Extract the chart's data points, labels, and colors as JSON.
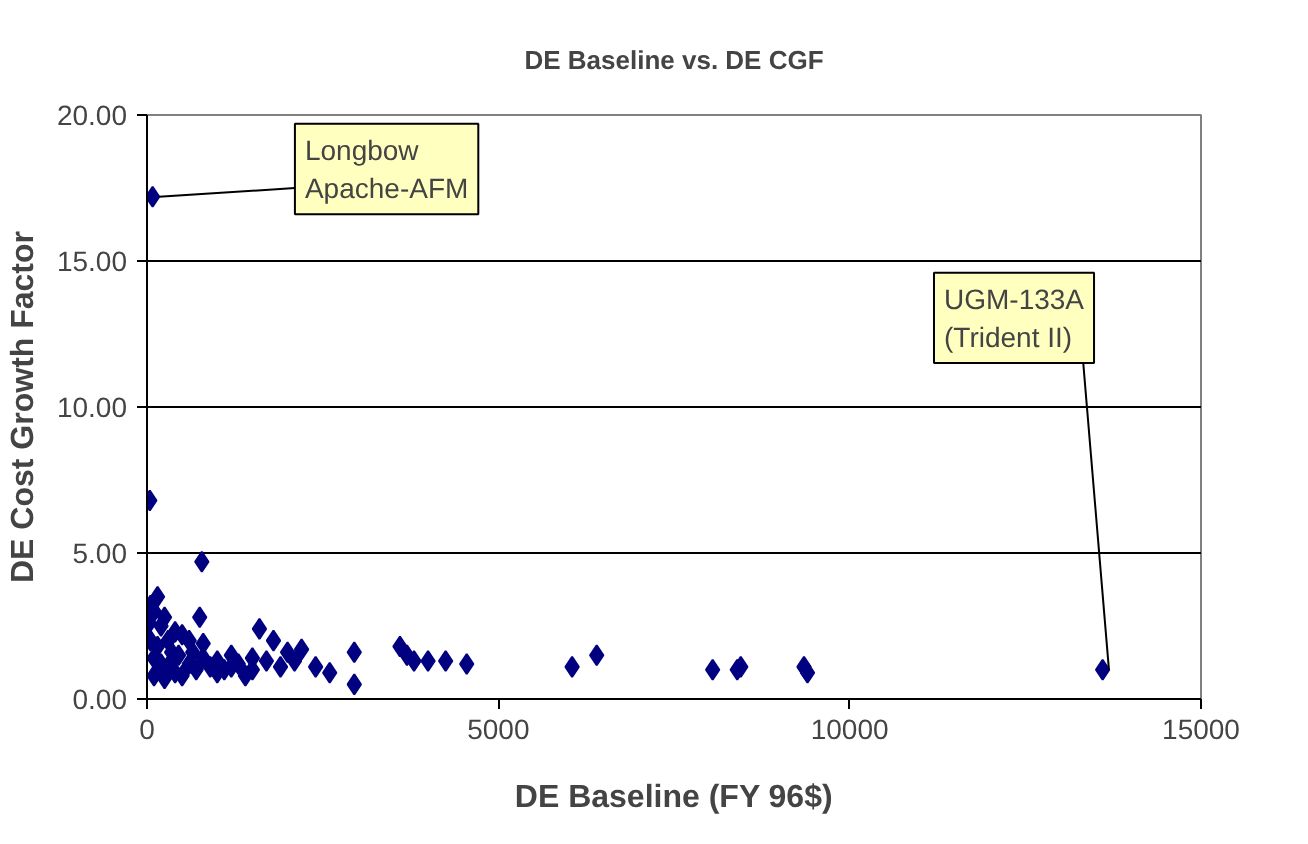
{
  "chart_data": {
    "type": "scatter",
    "title": "DE Baseline vs. DE CGF",
    "xlabel": "DE Baseline (FY 96$)",
    "ylabel": "DE Cost Growth Factor",
    "x": [
      80,
      40,
      780,
      150,
      50,
      100,
      250,
      750,
      30,
      200,
      400,
      500,
      300,
      600,
      800,
      50,
      150,
      350,
      450,
      100,
      200,
      300,
      100,
      250,
      400,
      600,
      700,
      900,
      1000,
      1100,
      1200,
      1300,
      1400,
      1500,
      1600,
      1700,
      1800,
      1900,
      2000,
      2100,
      2200,
      2400,
      2600,
      2950,
      2950,
      3600,
      3700,
      3800,
      4000,
      4250,
      4550,
      6050,
      6400,
      8050,
      8400,
      8450,
      9350,
      9400,
      13600,
      1000,
      500,
      1200,
      800,
      1500,
      650,
      350
    ],
    "values": [
      17.2,
      6.8,
      4.7,
      3.5,
      3.2,
      3.0,
      2.8,
      2.8,
      2.6,
      2.5,
      2.3,
      2.2,
      2.0,
      2.0,
      1.9,
      2.0,
      1.8,
      1.6,
      1.5,
      1.4,
      1.2,
      1.1,
      0.8,
      0.7,
      0.9,
      1.2,
      1.0,
      1.1,
      1.3,
      1.0,
      1.5,
      1.2,
      0.8,
      1.0,
      2.4,
      1.3,
      2.0,
      1.1,
      1.6,
      1.3,
      1.7,
      1.1,
      0.9,
      1.6,
      0.5,
      1.8,
      1.5,
      1.3,
      1.3,
      1.3,
      1.2,
      1.1,
      1.5,
      1.0,
      1.0,
      1.1,
      1.1,
      0.9,
      1.0,
      0.9,
      0.8,
      1.1,
      1.4,
      1.4,
      1.6,
      1.3
    ],
    "color": "#000080",
    "marker": "diamond",
    "xlim": [
      0,
      15000
    ],
    "xticks": [
      0,
      5000,
      10000,
      15000
    ],
    "ylim": [
      0,
      20
    ],
    "yticks": [
      {
        "value": 0,
        "label": "0.00"
      },
      {
        "value": 5,
        "label": "5.00"
      },
      {
        "value": 10,
        "label": "10.00"
      },
      {
        "value": 15,
        "label": "15.00"
      },
      {
        "value": 20,
        "label": "20.00"
      }
    ],
    "grid": "y",
    "annotations": [
      {
        "text": "Longbow\nApache-AFM",
        "x": 80,
        "y": 17.2
      },
      {
        "text": "UGM-133A\n(Trident II)",
        "x": 13600,
        "y": 1.0
      }
    ]
  }
}
